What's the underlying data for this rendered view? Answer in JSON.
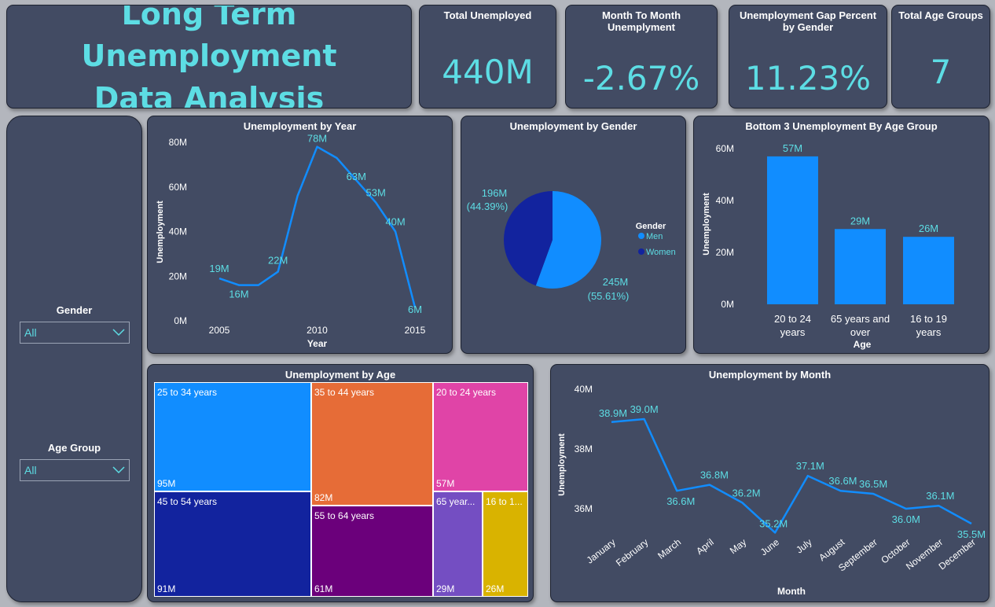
{
  "header": {
    "title_line1": "Long Term Unemployment",
    "title_line2": "Data Analysis"
  },
  "kpis": [
    {
      "label": "Total Unemployed",
      "value": "440M"
    },
    {
      "label": "Month To Month Unemplyment",
      "value": "-2.67%"
    },
    {
      "label": "Unemployment Gap Percent by Gender",
      "value": "11.23%"
    },
    {
      "label": "Total Age Groups",
      "value": "7"
    }
  ],
  "slicers": {
    "gender": {
      "label": "Gender",
      "value": "All"
    },
    "age_group": {
      "label": "Age Group",
      "value": "All"
    }
  },
  "colors": {
    "accent": "#5ddde4",
    "bar": "#118dff",
    "card": "#424b63",
    "men": "#118dff",
    "women": "#12239e"
  },
  "chart_data": [
    {
      "id": "by_year",
      "type": "line",
      "title": "Unemployment by Year",
      "xlabel": "Year",
      "ylabel": "Unemployment",
      "x": [
        2005,
        2006,
        2007,
        2008,
        2009,
        2010,
        2011,
        2012,
        2013,
        2014,
        2015
      ],
      "values": [
        19,
        16,
        16,
        22,
        56,
        78,
        73,
        63,
        53,
        40,
        6
      ],
      "data_labels": [
        "19M",
        "16M",
        "",
        "22M",
        "",
        "78M",
        "",
        "63M",
        "53M",
        "40M",
        "6M"
      ],
      "x_ticks": [
        "2005",
        "2010",
        "2015"
      ],
      "y_ticks": [
        "0M",
        "20M",
        "40M",
        "60M",
        "80M"
      ],
      "ylim": [
        0,
        80
      ]
    },
    {
      "id": "by_gender",
      "type": "pie",
      "title": "Unemployment by Gender",
      "legend_title": "Gender",
      "slices": [
        {
          "name": "Men",
          "value": 245,
          "label": "245M",
          "pct": "(55.61%)",
          "color": "#118dff"
        },
        {
          "name": "Women",
          "value": 196,
          "label": "196M",
          "pct": "(44.39%)",
          "color": "#12239e"
        }
      ]
    },
    {
      "id": "bottom3_age",
      "type": "bar",
      "title": "Bottom 3 Unemployment By Age Group",
      "xlabel": "Age",
      "ylabel": "Unemployment",
      "categories": [
        [
          "20 to 24",
          "years"
        ],
        [
          "65 years and",
          "over"
        ],
        [
          "16 to 19",
          "years"
        ]
      ],
      "values": [
        57,
        29,
        26
      ],
      "data_labels": [
        "57M",
        "29M",
        "26M"
      ],
      "y_ticks": [
        "0M",
        "20M",
        "40M",
        "60M"
      ],
      "ylim": [
        0,
        60
      ]
    },
    {
      "id": "by_age",
      "type": "treemap",
      "title": "Unemployment by Age",
      "items": [
        {
          "name": "25 to 34 years",
          "value": 95,
          "label": "95M",
          "color": "#118dff"
        },
        {
          "name": "45 to 54 years",
          "value": 91,
          "label": "91M",
          "color": "#12239e"
        },
        {
          "name": "35 to 44 years",
          "value": 82,
          "label": "82M",
          "color": "#e66c37"
        },
        {
          "name": "55 to 64 years",
          "value": 61,
          "label": "61M",
          "color": "#6b007b"
        },
        {
          "name": "20 to 24 years",
          "value": 57,
          "label": "57M",
          "color": "#e044a7"
        },
        {
          "name": "65 year...",
          "value": 29,
          "label": "29M",
          "color": "#744ec2"
        },
        {
          "name": "16 to 1...",
          "value": 26,
          "label": "26M",
          "color": "#d9b300"
        }
      ]
    },
    {
      "id": "by_month",
      "type": "line",
      "title": "Unemployment by Month",
      "xlabel": "Month",
      "ylabel": "Unemployment",
      "categories": [
        "January",
        "February",
        "March",
        "April",
        "May",
        "June",
        "July",
        "August",
        "September",
        "October",
        "November",
        "December"
      ],
      "values": [
        38.9,
        39.0,
        36.6,
        36.8,
        36.2,
        35.2,
        37.1,
        36.6,
        36.5,
        36.0,
        36.1,
        35.5
      ],
      "data_labels": [
        "38.9M",
        "39.0M",
        "36.6M",
        "36.8M",
        "36.2M",
        "35.2M",
        "37.1M",
        "36.6M",
        "36.5M",
        "36.0M",
        "36.1M",
        "35.5M"
      ],
      "y_ticks": [
        "36M",
        "38M",
        "40M"
      ],
      "ylim": [
        34.8,
        40
      ]
    }
  ]
}
